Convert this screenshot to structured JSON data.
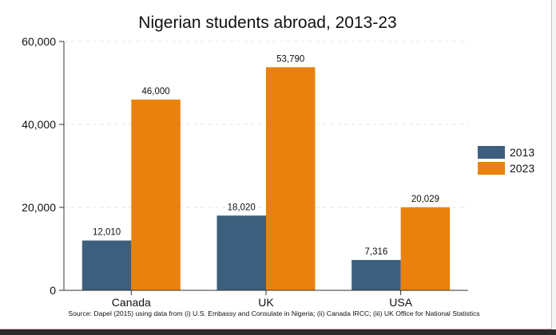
{
  "chart_data": {
    "type": "bar",
    "title": "Nigerian students abroad, 2013-23",
    "categories": [
      "Canada",
      "UK",
      "USA"
    ],
    "series": [
      {
        "name": "2013",
        "values": [
          12010,
          18020,
          7316
        ],
        "labels": [
          "12,010",
          "18,020",
          "7,316"
        ],
        "color": "#3d5f7d"
      },
      {
        "name": "2023",
        "values": [
          46000,
          53790,
          20029
        ],
        "labels": [
          "46,000",
          "53,790",
          "20,029"
        ],
        "color": "#e8820c"
      }
    ],
    "ylim": [
      0,
      60000
    ],
    "yticks": [
      0,
      20000,
      40000,
      60000
    ],
    "ytick_labels": [
      "0",
      "20,000",
      "40,000",
      "60,000"
    ],
    "xlabel": "",
    "ylabel": "",
    "grid": true,
    "legend_position": "right",
    "source": "Source: Dapel (2015) using data from (i) U.S. Embassy and Consulate in Nigeria; (ii) Canada IRCC; (iii) UK Office for National Statistics"
  }
}
